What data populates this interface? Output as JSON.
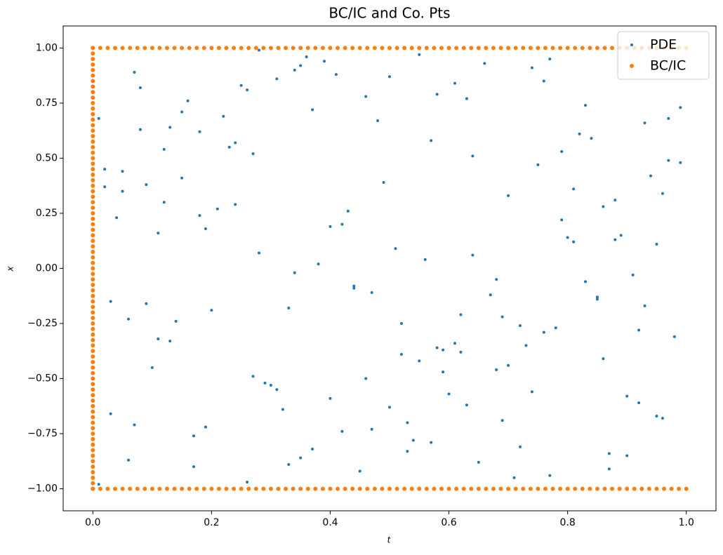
{
  "chart_data": {
    "type": "scatter",
    "title": "BC/IC and Co. Pts",
    "x_label": "t",
    "y_label": "x",
    "xlim": [
      -0.05,
      1.05
    ],
    "ylim": [
      -1.1,
      1.1
    ],
    "xticks": [
      {
        "value": 0,
        "label": "0.0"
      },
      0.2,
      0.4,
      0.6,
      0.8,
      {
        "value": 1,
        "label": "1.0"
      }
    ],
    "yticks": [
      {
        "value": -1,
        "label": "−1.00"
      },
      {
        "value": -0.75,
        "label": "−0.75"
      },
      {
        "value": -0.5,
        "label": "−0.50"
      },
      {
        "value": -0.25,
        "label": "−0.25"
      },
      {
        "value": 0,
        "label": "0.00"
      },
      {
        "value": 0.25,
        "label": "0.25"
      },
      {
        "value": 0.5,
        "label": "0.50"
      },
      {
        "value": 0.75,
        "label": "0.75"
      },
      {
        "value": 1,
        "label": "1.00"
      }
    ],
    "legend": "upper right",
    "series": [
      {
        "name": "PDE",
        "color": "#1f77b4",
        "x": [
          0.02,
          0.37,
          0.81,
          0.55,
          0.13,
          0.92,
          0.46,
          0.68,
          0.24,
          0.77,
          0.59,
          0.08,
          0.33,
          0.96,
          0.41,
          0.19,
          0.72,
          0.64,
          0.87,
          0.28,
          0.15,
          0.52,
          0.03,
          0.79,
          0.44,
          0.66,
          0.31,
          0.98,
          0.11,
          0.57,
          0.85,
          0.26,
          0.7,
          0.06,
          0.49,
          0.38,
          0.93,
          0.17,
          0.62,
          0.75,
          0.34,
          0.9,
          0.21,
          0.58,
          0.01,
          0.83,
          0.47,
          0.12,
          0.69,
          0.4,
          0.76,
          0.05,
          0.61,
          0.29,
          0.95,
          0.53,
          0.18,
          0.86,
          0.36,
          0.09,
          0.43,
          0.71,
          0.99,
          0.22,
          0.63,
          0.14,
          0.8,
          0.5,
          0.27,
          0.91,
          0.07,
          0.56,
          0.35,
          0.84,
          0.16,
          0.73,
          0.45,
          0.04,
          0.97,
          0.6,
          0.25,
          0.88,
          0.1,
          0.67,
          0.39,
          0.54,
          0.02,
          0.78,
          0.32,
          0.94,
          0.65,
          0.2,
          0.48,
          0.89,
          0.3,
          0.74,
          0.11,
          0.58,
          0.83,
          0.42,
          0.51,
          0.95,
          0.23,
          0.06,
          0.7,
          0.37,
          0.87,
          0.15,
          0.62,
          0.28,
          0.82,
          0.44,
          0.09,
          0.57,
          0.97,
          0.19,
          0.68,
          0.33,
          0.76,
          0.03,
          0.4,
          0.79,
          0.26,
          0.92,
          0.13,
          0.55,
          0.86,
          0.47,
          0.08,
          0.64,
          0.18,
          0.61,
          0.99,
          0.35,
          0.72,
          0.05,
          0.5,
          0.93,
          0.24,
          0.81,
          0.69,
          0.31,
          0.53,
          0.12,
          0.85,
          0.46,
          0.77,
          0.01,
          0.59,
          0.9,
          0.27,
          0.74,
          0.42,
          0.96,
          0.17,
          0.63,
          0.34,
          0.88,
          0.52,
          0.07
        ],
        "y": [
          0.45,
          -0.82,
          0.12,
          0.97,
          -0.33,
          -0.61,
          0.78,
          -0.05,
          0.29,
          -0.94,
          -0.47,
          0.63,
          -0.18,
          0.34,
          0.88,
          -0.72,
          -0.26,
          0.51,
          -0.91,
          0.07,
          0.71,
          -0.39,
          -0.66,
          0.22,
          -0.08,
          0.93,
          -0.55,
          -0.31,
          0.16,
          0.58,
          -0.13,
          0.81,
          -0.44,
          -0.87,
          0.39,
          0.02,
          0.66,
          -0.76,
          -0.21,
          0.47,
          0.9,
          -0.58,
          0.27,
          -0.36,
          -0.98,
          0.74,
          -0.11,
          0.54,
          -0.69,
          0.19,
          -0.29,
          0.35,
          0.84,
          -0.52,
          0.11,
          -0.83,
          0.62,
          -0.41,
          0.96,
          -0.16,
          0.26,
          -0.95,
          0.48,
          0.69,
          -0.62,
          -0.24,
          0.14,
          0.87,
          -0.49,
          -0.03,
          -0.71,
          0.04,
          -0.86,
          0.59,
          0.76,
          -0.35,
          -0.92,
          0.23,
          0.68,
          -0.57,
          0.83,
          0.31,
          -0.45,
          -0.12,
          0.94,
          -0.78,
          0.37,
          -0.27,
          -0.64,
          0.42,
          -0.88,
          -0.19,
          0.67,
          0.15,
          -0.53,
          0.91,
          -0.32,
          0.79,
          -0.06,
          -0.74,
          0.09,
          -0.67,
          0.55,
          -0.23,
          0.33,
          0.72,
          -0.84,
          0.41,
          -0.38,
          0.99,
          0.61,
          -0.09,
          0.38,
          -0.79,
          0.49,
          0.18,
          -0.46,
          -0.89,
          0.85,
          -0.15,
          -0.59,
          0.53,
          -0.97,
          -0.28,
          0.64,
          -0.42,
          0.28,
          -0.73,
          0.82,
          0.06,
          0.24,
          -0.34,
          0.73,
          0.92,
          -0.81,
          0.44,
          -0.63,
          -0.17,
          0.57,
          0.36,
          -0.22,
          0.86,
          -0.7,
          0.3,
          -0.14,
          -0.5,
          0.95,
          0.68,
          -0.37,
          -0.85,
          0.52,
          -0.56,
          0.2,
          -0.68,
          -0.9,
          0.77,
          -0.02,
          0.13,
          -0.25,
          0.89
        ]
      },
      {
        "name": "BC/IC",
        "color": "#ff7f0e",
        "x": [
          0,
          0,
          0,
          0,
          0,
          0,
          0,
          0,
          0,
          0,
          0,
          0,
          0,
          0,
          0,
          0,
          0,
          0,
          0,
          0,
          0,
          0,
          0,
          0,
          0,
          0,
          0,
          0,
          0,
          0,
          0,
          0,
          0,
          0,
          0,
          0,
          0,
          0,
          0,
          0,
          0,
          0,
          0,
          0,
          0,
          0,
          0,
          0,
          0,
          0,
          0,
          0,
          0,
          0,
          0,
          0,
          0,
          0,
          0,
          0,
          0,
          0,
          0,
          0,
          0,
          0,
          0,
          0,
          0,
          0,
          0,
          0,
          0,
          0,
          0,
          0,
          0,
          0,
          0,
          0,
          0,
          0,
          0.0125,
          0.025,
          0.0375,
          0.05,
          0.0625,
          0.075,
          0.0875,
          0.1,
          0.1125,
          0.125,
          0.1375,
          0.15,
          0.1625,
          0.175,
          0.1875,
          0.2,
          0.2125,
          0.225,
          0.2375,
          0.25,
          0.2625,
          0.275,
          0.2875,
          0.3,
          0.3125,
          0.325,
          0.3375,
          0.35,
          0.3625,
          0.375,
          0.3875,
          0.4,
          0.4125,
          0.425,
          0.4375,
          0.45,
          0.4625,
          0.475,
          0.4875,
          0.5,
          0.5125,
          0.525,
          0.5375,
          0.55,
          0.5625,
          0.575,
          0.5875,
          0.6,
          0.6125,
          0.625,
          0.6375,
          0.65,
          0.6625,
          0.675,
          0.6875,
          0.7,
          0.7125,
          0.725,
          0.7375,
          0.75,
          0.7625,
          0.775,
          0.7875,
          0.8,
          0.8125,
          0.825,
          0.8375,
          0.85,
          0.8625,
          0.875,
          0.8875,
          0.9,
          0.9125,
          0.925,
          0.9375,
          0.95,
          0.9625,
          0.975,
          0.9875,
          1,
          0,
          0.0125,
          0.025,
          0.0375,
          0.05,
          0.0625,
          0.075,
          0.0875,
          0.1,
          0.1125,
          0.125,
          0.1375,
          0.15,
          0.1625,
          0.175,
          0.1875,
          0.2,
          0.2125,
          0.225,
          0.2375,
          0.25,
          0.2625,
          0.275,
          0.2875,
          0.3,
          0.3125,
          0.325,
          0.3375,
          0.35,
          0.3625,
          0.375,
          0.3875,
          0.4,
          0.4125,
          0.425,
          0.4375,
          0.45,
          0.4625,
          0.475,
          0.4875,
          0.5,
          0.5125,
          0.525,
          0.5375,
          0.55,
          0.5625,
          0.575,
          0.5875,
          0.6,
          0.6125,
          0.625,
          0.6375,
          0.65,
          0.6625,
          0.675,
          0.6875,
          0.7,
          0.7125,
          0.725,
          0.7375,
          0.75,
          0.7625,
          0.775,
          0.7875,
          0.8,
          0.8125,
          0.825,
          0.8375,
          0.85,
          0.8625,
          0.875,
          0.8875,
          0.9,
          0.9125,
          0.925,
          0.9375,
          0.95,
          0.9625,
          0.975,
          0.9875,
          1
        ],
        "y": [
          -1,
          -0.975,
          -0.95,
          -0.925,
          -0.9,
          -0.875,
          -0.85,
          -0.825,
          -0.8,
          -0.775,
          -0.75,
          -0.725,
          -0.7,
          -0.675,
          -0.65,
          -0.625,
          -0.6,
          -0.575,
          -0.55,
          -0.525,
          -0.5,
          -0.475,
          -0.45,
          -0.425,
          -0.4,
          -0.375,
          -0.35,
          -0.325,
          -0.3,
          -0.275,
          -0.25,
          -0.225,
          -0.2,
          -0.175,
          -0.15,
          -0.125,
          -0.1,
          -0.075,
          -0.05,
          -0.025,
          0,
          0.025,
          0.05,
          0.075,
          0.1,
          0.125,
          0.15,
          0.175,
          0.2,
          0.225,
          0.25,
          0.275,
          0.3,
          0.325,
          0.35,
          0.375,
          0.4,
          0.425,
          0.45,
          0.475,
          0.5,
          0.525,
          0.55,
          0.575,
          0.6,
          0.625,
          0.65,
          0.675,
          0.7,
          0.725,
          0.75,
          0.775,
          0.8,
          0.825,
          0.85,
          0.875,
          0.9,
          0.925,
          0.95,
          0.975,
          1,
          1,
          1,
          1,
          1,
          1,
          1,
          1,
          1,
          1,
          1,
          1,
          1,
          1,
          1,
          1,
          1,
          1,
          1,
          1,
          1,
          1,
          1,
          1,
          1,
          1,
          1,
          1,
          1,
          1,
          1,
          1,
          1,
          1,
          1,
          1,
          1,
          1,
          1,
          1,
          1,
          1,
          1,
          1,
          1,
          1,
          1,
          1,
          1,
          1,
          1,
          1,
          1,
          1,
          1,
          1,
          1,
          1,
          1,
          1,
          1,
          1,
          1,
          1,
          1,
          1,
          1,
          1,
          1,
          1,
          1,
          1,
          1,
          1,
          1,
          1,
          1,
          1,
          1,
          1,
          1,
          1,
          -1,
          -1,
          -1,
          -1,
          -1,
          -1,
          -1,
          -1,
          -1,
          -1,
          -1,
          -1,
          -1,
          -1,
          -1,
          -1,
          -1,
          -1,
          -1,
          -1,
          -1,
          -1,
          -1,
          -1,
          -1,
          -1,
          -1,
          -1,
          -1,
          -1,
          -1,
          -1,
          -1,
          -1,
          -1,
          -1,
          -1,
          -1,
          -1,
          -1,
          -1,
          -1,
          -1,
          -1,
          -1,
          -1,
          -1,
          -1,
          -1,
          -1,
          -1,
          -1,
          -1,
          -1,
          -1,
          -1,
          -1,
          -1,
          -1,
          -1,
          -1,
          -1,
          -1,
          -1,
          -1,
          -1,
          -1,
          -1,
          -1,
          -1,
          -1,
          -1,
          -1,
          -1,
          -1,
          -1,
          -1,
          -1,
          -1,
          -1,
          -1
        ]
      }
    ]
  }
}
